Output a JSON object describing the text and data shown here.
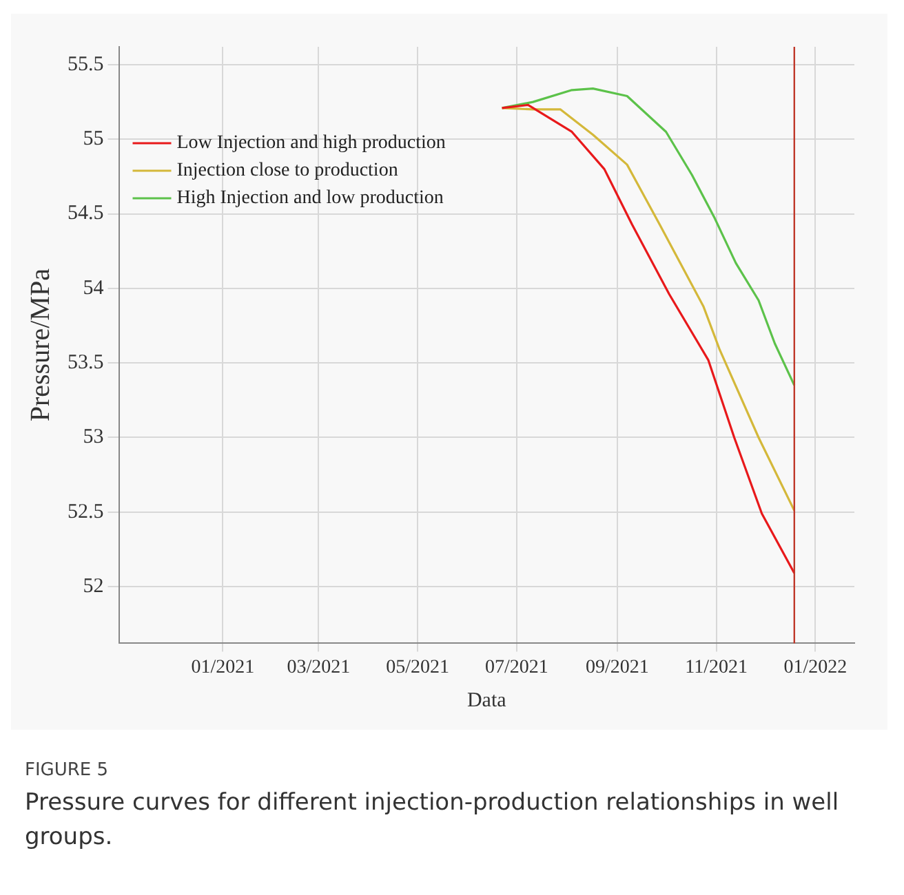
{
  "chart_data": {
    "type": "line",
    "xlabel": "Data",
    "ylabel": "Pressure/MPa",
    "annotations": [
      "FIGURE 5",
      "Pressure curves for different injection-production relationships in well groups."
    ],
    "xlim": [
      "2020-10-29",
      "2022-01-25"
    ],
    "ylim": [
      51.62,
      55.62
    ],
    "xticks": [
      {
        "value": "2021-01",
        "label": "01/2021"
      },
      {
        "value": "2021-03",
        "label": "03/2021"
      },
      {
        "value": "2021-05",
        "label": "05/2021"
      },
      {
        "value": "2021-07",
        "label": "07/2021"
      },
      {
        "value": "2021-09",
        "label": "09/2021"
      },
      {
        "value": "2021-11",
        "label": "11/2021"
      },
      {
        "value": "2022-01",
        "label": "01/2022"
      }
    ],
    "yticks": [
      52,
      52.5,
      53,
      53.5,
      54,
      54.5,
      55,
      55.5
    ],
    "grid": true,
    "legend": "top left",
    "marker": "none",
    "line_style": "solid",
    "ref_lines": [
      {
        "axis": "x",
        "value": "2021-12-19",
        "label": null,
        "color": "#c0392b"
      }
    ],
    "series": [
      {
        "name": "Low Injection and high production",
        "color": "#e8191b",
        "x": [
          "2021-06-22",
          "2021-07-08",
          "2021-08-04",
          "2021-08-24",
          "2021-09-10",
          "2021-10-03",
          "2021-10-27",
          "2021-11-12",
          "2021-11-29",
          "2021-12-19"
        ],
        "values": [
          55.21,
          55.23,
          55.05,
          54.8,
          54.43,
          53.96,
          53.52,
          53.0,
          52.49,
          52.09
        ]
      },
      {
        "name": "Injection close to production",
        "color": "#d4b83a",
        "x": [
          "2021-06-22",
          "2021-07-11",
          "2021-07-28",
          "2021-08-17",
          "2021-09-07",
          "2021-09-27",
          "2021-10-24",
          "2021-11-03",
          "2021-11-27",
          "2021-12-19"
        ],
        "values": [
          55.21,
          55.2,
          55.2,
          55.03,
          54.83,
          54.43,
          53.88,
          53.59,
          53.0,
          52.51
        ]
      },
      {
        "name": "High Injection and low production",
        "color": "#5cc24a",
        "x": [
          "2021-06-22",
          "2021-07-11",
          "2021-08-04",
          "2021-08-17",
          "2021-09-07",
          "2021-10-01",
          "2021-10-17",
          "2021-10-31",
          "2021-11-13",
          "2021-11-27",
          "2021-12-07",
          "2021-12-19"
        ],
        "values": [
          55.21,
          55.25,
          55.33,
          55.34,
          55.29,
          55.05,
          54.76,
          54.47,
          54.17,
          53.92,
          53.63,
          53.35
        ]
      }
    ]
  }
}
